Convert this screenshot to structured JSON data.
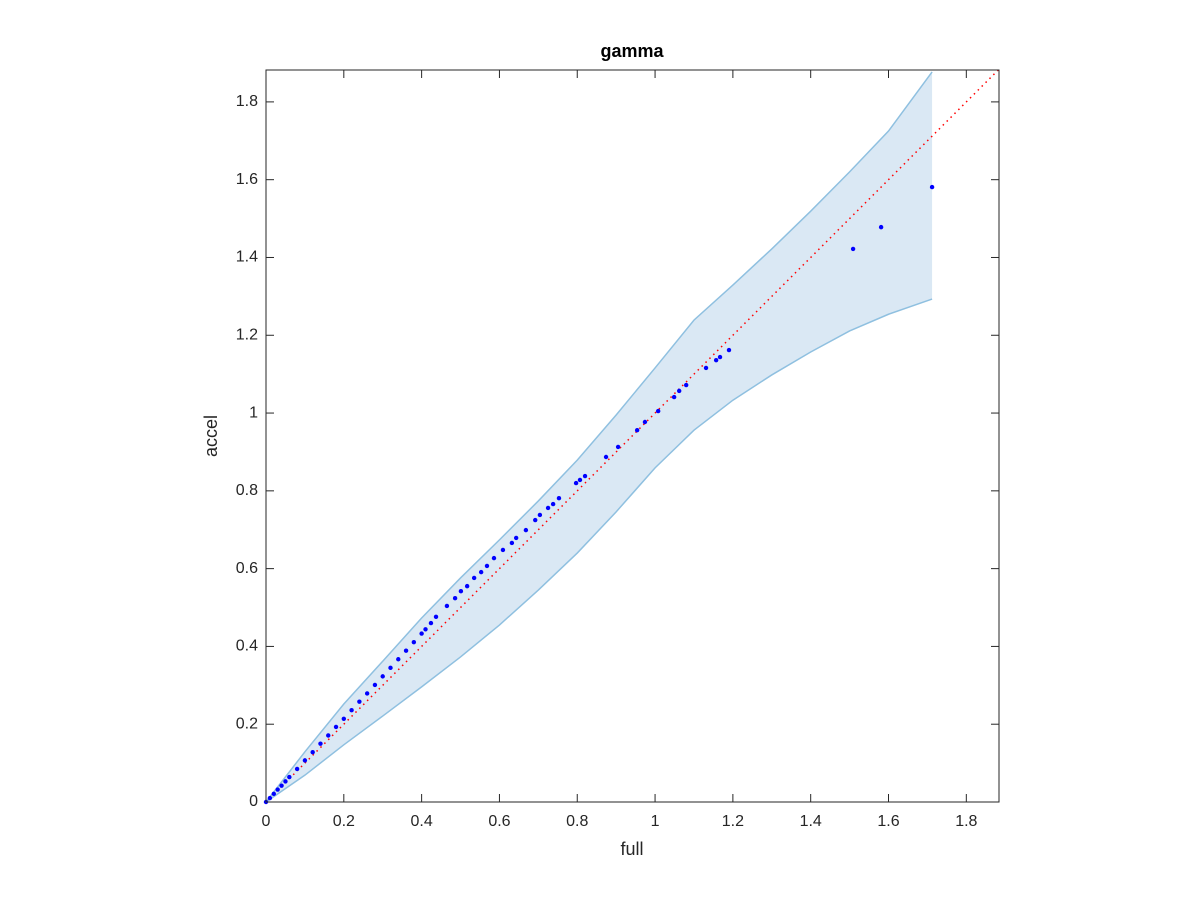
{
  "chart_data": {
    "type": "scatter",
    "title": "gamma",
    "x_label": "full",
    "y_label": "accel",
    "xlim": [
      0,
      1.884
    ],
    "ylim": [
      0,
      1.882
    ],
    "xticks": [
      0,
      0.2,
      0.4,
      0.6,
      0.8,
      1,
      1.2,
      1.4,
      1.6,
      1.8
    ],
    "yticks": [
      0,
      0.2,
      0.4,
      0.6,
      0.8,
      1,
      1.2,
      1.4,
      1.6,
      1.8
    ],
    "points": {
      "color": "#0000ff",
      "x": [
        0,
        0.01,
        0.02,
        0.03,
        0.04,
        0.05,
        0.06,
        0.08,
        0.1,
        0.12,
        0.14,
        0.16,
        0.18,
        0.2,
        0.22,
        0.24,
        0.26,
        0.28,
        0.3,
        0.32,
        0.34,
        0.36,
        0.38,
        0.4,
        0.41,
        0.424,
        0.437,
        0.465,
        0.486,
        0.501,
        0.517,
        0.535,
        0.553,
        0.568,
        0.586,
        0.609,
        0.632,
        0.643,
        0.668,
        0.692,
        0.704,
        0.725,
        0.738,
        0.753,
        0.797,
        0.807,
        0.82,
        0.874,
        0.905,
        0.954,
        0.974,
        1.008,
        1.049,
        1.062,
        1.08,
        1.131,
        1.157,
        1.167,
        1.19,
        1.509,
        1.581,
        1.712
      ],
      "y": [
        0,
        0.01,
        0.021,
        0.032,
        0.042,
        0.053,
        0.064,
        0.085,
        0.107,
        0.128,
        0.15,
        0.171,
        0.193,
        0.214,
        0.236,
        0.258,
        0.279,
        0.301,
        0.323,
        0.345,
        0.367,
        0.389,
        0.411,
        0.433,
        0.444,
        0.46,
        0.476,
        0.504,
        0.524,
        0.542,
        0.555,
        0.576,
        0.591,
        0.607,
        0.627,
        0.648,
        0.666,
        0.679,
        0.699,
        0.725,
        0.738,
        0.756,
        0.766,
        0.781,
        0.82,
        0.828,
        0.838,
        0.887,
        0.913,
        0.956,
        0.977,
        1.005,
        1.041,
        1.057,
        1.072,
        1.116,
        1.136,
        1.144,
        1.162,
        1.422,
        1.478,
        1.581
      ]
    },
    "band": {
      "fill": "#dae8f4",
      "edge": "#8fc0e0",
      "x": [
        0,
        0.1,
        0.2,
        0.3,
        0.4,
        0.5,
        0.6,
        0.7,
        0.8,
        0.9,
        1,
        1.1,
        1.2,
        1.3,
        1.4,
        1.5,
        1.6,
        1.712
      ],
      "upper": [
        0,
        0.129,
        0.252,
        0.362,
        0.473,
        0.576,
        0.674,
        0.774,
        0.879,
        0.995,
        1.116,
        1.239,
        1.329,
        1.422,
        1.519,
        1.62,
        1.725,
        1.877
      ],
      "lower": [
        0,
        0.069,
        0.147,
        0.221,
        0.296,
        0.373,
        0.455,
        0.545,
        0.64,
        0.746,
        0.859,
        0.956,
        1.033,
        1.098,
        1.157,
        1.211,
        1.254,
        1.293
      ]
    },
    "reference_line": {
      "color": "#ff0000",
      "x": [
        0,
        1.884
      ],
      "y": [
        0,
        1.884
      ]
    }
  }
}
